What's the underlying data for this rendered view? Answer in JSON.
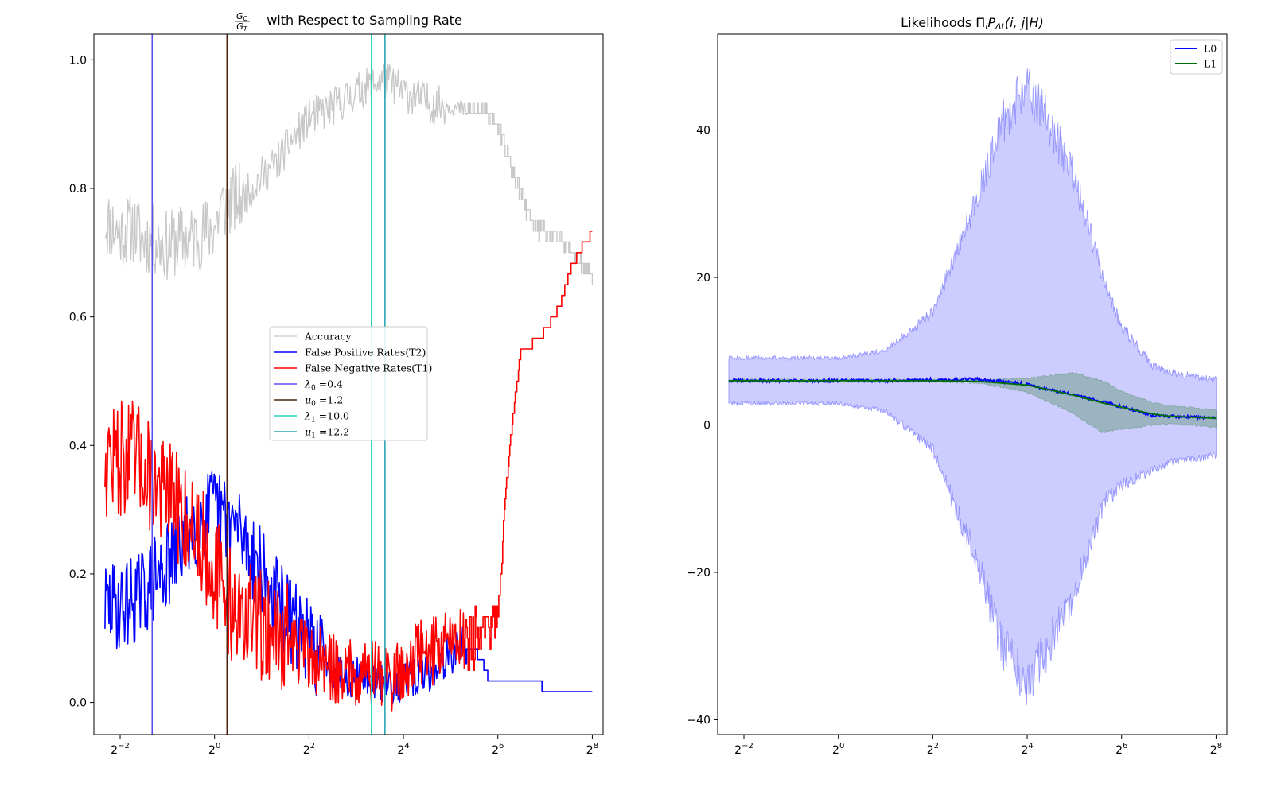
{
  "figure": {
    "background": "#ffffff"
  },
  "chart_data": [
    {
      "type": "line",
      "title": "G_C/G_T with Respect to Sampling Rate",
      "title_parts": {
        "num": "G",
        "num_sub": "C",
        "den": "G",
        "den_sub": "T",
        "rest": "with Respect to Sampling Rate"
      },
      "xlabel": "",
      "ylabel": "",
      "xscale": "log2",
      "xlim": [
        0.17,
        300
      ],
      "ylim": [
        -0.05,
        1.04
      ],
      "xticks": [
        {
          "exp": "−2",
          "value": 0.25
        },
        {
          "exp": "0",
          "value": 1
        },
        {
          "exp": "2",
          "value": 4
        },
        {
          "exp": "4",
          "value": 16
        },
        {
          "exp": "6",
          "value": 64
        },
        {
          "exp": "8",
          "value": 256
        }
      ],
      "yticks": [
        {
          "label": "0.0",
          "value": 0.0
        },
        {
          "label": "0.2",
          "value": 0.2
        },
        {
          "label": "0.4",
          "value": 0.4
        },
        {
          "label": "0.6",
          "value": 0.6
        },
        {
          "label": "0.8",
          "value": 0.8
        },
        {
          "label": "1.0",
          "value": 1.0
        }
      ],
      "grid": false,
      "legend_position": "center",
      "noisy_series": [
        {
          "name": "Accuracy",
          "color": "#c8c8c8",
          "stroke": 1.3,
          "points": [
            [
              0.2,
              0.75
            ],
            [
              0.25,
              0.73
            ],
            [
              0.3,
              0.74
            ],
            [
              0.35,
              0.72
            ],
            [
              0.4,
              0.72
            ],
            [
              0.5,
              0.71
            ],
            [
              0.6,
              0.72
            ],
            [
              0.7,
              0.72
            ],
            [
              0.85,
              0.73
            ],
            [
              1.0,
              0.74
            ],
            [
              1.1,
              0.77
            ],
            [
              1.3,
              0.78
            ],
            [
              1.6,
              0.79
            ],
            [
              2.0,
              0.82
            ],
            [
              2.5,
              0.84
            ],
            [
              3.0,
              0.87
            ],
            [
              3.5,
              0.89
            ],
            [
              4.0,
              0.91
            ],
            [
              5.0,
              0.92
            ],
            [
              6.0,
              0.93
            ],
            [
              7.0,
              0.94
            ],
            [
              8.0,
              0.95
            ],
            [
              10.0,
              0.96
            ],
            [
              12.0,
              0.97
            ],
            [
              14.0,
              0.96
            ],
            [
              16.0,
              0.95
            ],
            [
              20.0,
              0.94
            ],
            [
              25.0,
              0.93
            ],
            [
              30.0,
              0.93
            ],
            [
              40.0,
              0.92
            ],
            [
              50.0,
              0.92
            ],
            [
              60.0,
              0.91
            ],
            [
              70.0,
              0.87
            ],
            [
              80.0,
              0.82
            ],
            [
              90.0,
              0.79
            ],
            [
              100.0,
              0.76
            ],
            [
              110.0,
              0.74
            ],
            [
              130.0,
              0.73
            ],
            [
              160.0,
              0.72
            ],
            [
              190.0,
              0.7
            ],
            [
              220.0,
              0.68
            ],
            [
              256.0,
              0.66
            ]
          ]
        },
        {
          "name": "False Positive Rates(T2)",
          "color": "#0000ff",
          "stroke": 1.6,
          "points": [
            [
              0.2,
              0.15
            ],
            [
              0.25,
              0.15
            ],
            [
              0.3,
              0.16
            ],
            [
              0.35,
              0.17
            ],
            [
              0.4,
              0.19
            ],
            [
              0.5,
              0.21
            ],
            [
              0.6,
              0.24
            ],
            [
              0.7,
              0.27
            ],
            [
              0.85,
              0.29
            ],
            [
              1.0,
              0.3
            ],
            [
              1.1,
              0.29
            ],
            [
              1.3,
              0.28
            ],
            [
              1.6,
              0.25
            ],
            [
              2.0,
              0.2
            ],
            [
              2.5,
              0.16
            ],
            [
              3.0,
              0.13
            ],
            [
              3.5,
              0.11
            ],
            [
              4.0,
              0.09
            ],
            [
              5.0,
              0.07
            ],
            [
              6.0,
              0.05
            ],
            [
              7.0,
              0.04
            ],
            [
              8.0,
              0.04
            ],
            [
              10.0,
              0.04
            ],
            [
              12.0,
              0.03
            ],
            [
              14.0,
              0.03
            ],
            [
              16.0,
              0.03
            ],
            [
              20.0,
              0.04
            ],
            [
              25.0,
              0.05
            ],
            [
              30.0,
              0.07
            ],
            [
              40.0,
              0.09
            ],
            [
              50.0,
              0.07
            ],
            [
              55.0,
              0.04
            ],
            [
              70.0,
              0.035
            ],
            [
              90.0,
              0.035
            ],
            [
              110.0,
              0.035
            ],
            [
              130.0,
              0.018
            ],
            [
              180.0,
              0.018
            ],
            [
              256.0,
              0.018
            ]
          ]
        },
        {
          "name": "False Negative Rates(T1)",
          "color": "#ff0000",
          "stroke": 1.6,
          "points": [
            [
              0.2,
              0.38
            ],
            [
              0.25,
              0.38
            ],
            [
              0.3,
              0.38
            ],
            [
              0.35,
              0.37
            ],
            [
              0.4,
              0.35
            ],
            [
              0.5,
              0.32
            ],
            [
              0.6,
              0.3
            ],
            [
              0.7,
              0.28
            ],
            [
              0.85,
              0.25
            ],
            [
              1.0,
              0.21
            ],
            [
              1.1,
              0.18
            ],
            [
              1.3,
              0.15
            ],
            [
              1.6,
              0.13
            ],
            [
              2.0,
              0.12
            ],
            [
              2.5,
              0.11
            ],
            [
              3.0,
              0.1
            ],
            [
              3.5,
              0.08
            ],
            [
              4.0,
              0.07
            ],
            [
              5.0,
              0.06
            ],
            [
              6.0,
              0.05
            ],
            [
              7.0,
              0.05
            ],
            [
              8.0,
              0.05
            ],
            [
              10.0,
              0.05
            ],
            [
              12.0,
              0.04
            ],
            [
              14.0,
              0.04
            ],
            [
              16.0,
              0.05
            ],
            [
              20.0,
              0.08
            ],
            [
              25.0,
              0.08
            ],
            [
              30.0,
              0.1
            ],
            [
              40.0,
              0.1
            ],
            [
              50.0,
              0.11
            ],
            [
              60.0,
              0.12
            ],
            [
              65.0,
              0.16
            ],
            [
              70.0,
              0.3
            ],
            [
              80.0,
              0.45
            ],
            [
              90.0,
              0.55
            ],
            [
              110.0,
              0.56
            ],
            [
              130.0,
              0.58
            ],
            [
              160.0,
              0.62
            ],
            [
              190.0,
              0.68
            ],
            [
              220.0,
              0.71
            ],
            [
              256.0,
              0.73
            ]
          ]
        }
      ],
      "vlines": [
        {
          "name": "λ₀ =0.4",
          "sym": "λ",
          "sub": "0",
          "value": "0.4",
          "x": 0.4,
          "color": "#5a4ff0"
        },
        {
          "name": "μ₀ =1.2",
          "sym": "μ",
          "sub": "0",
          "value": "1.2",
          "x": 1.2,
          "color": "#4a2210"
        },
        {
          "name": "λ₁ =10.0",
          "sym": "λ",
          "sub": "1",
          "value": "10.0",
          "x": 10.0,
          "color": "#22d6bc"
        },
        {
          "name": "μ₁ =12.2",
          "sym": "μ",
          "sub": "1",
          "value": "12.2",
          "x": 12.2,
          "color": "#2aa6b4"
        }
      ]
    },
    {
      "type": "area",
      "title": "Likelihoods ΠᵢPΔt(i, j|H)",
      "title_parts": {
        "pre": "Likelihoods Π",
        "pi_sub": "i",
        "p": "P",
        "p_sub": "Δt",
        "args": "(i, j|H)"
      },
      "xlabel": "",
      "ylabel": "",
      "xscale": "log2",
      "xlim": [
        0.17,
        300
      ],
      "ylim": [
        -42,
        53
      ],
      "xticks": [
        {
          "exp": "−2",
          "value": 0.25
        },
        {
          "exp": "0",
          "value": 1
        },
        {
          "exp": "2",
          "value": 4
        },
        {
          "exp": "4",
          "value": 16
        },
        {
          "exp": "6",
          "value": 64
        },
        {
          "exp": "8",
          "value": 256
        }
      ],
      "yticks": [
        {
          "label": "−40",
          "value": -40
        },
        {
          "label": "−20",
          "value": -20
        },
        {
          "label": "0",
          "value": 0
        },
        {
          "label": "20",
          "value": 20
        },
        {
          "label": "40",
          "value": 40
        }
      ],
      "grid": false,
      "legend_position": "top-right",
      "bands": [
        {
          "name": "L0 band",
          "color": "#0000ff",
          "fill_opacity": 0.2,
          "x": [
            0.2,
            0.5,
            1.0,
            2.0,
            4.0,
            8.0,
            11.0,
            16.0,
            22.0,
            32.0,
            50.0,
            64.0,
            100.0,
            128.0,
            256.0
          ],
          "upper": [
            9,
            9,
            9,
            10,
            15,
            31,
            40,
            45,
            40,
            33,
            19,
            13,
            8,
            7,
            6
          ],
          "lower": [
            3,
            3,
            3,
            2,
            -3,
            -19,
            -29,
            -34,
            -29,
            -22,
            -10,
            -8,
            -6,
            -5,
            -4
          ]
        },
        {
          "name": "L1 band",
          "color": "#2e7d32",
          "fill_opacity": 0.3,
          "x": [
            0.2,
            1.0,
            4.0,
            8.0,
            16.0,
            32.0,
            48.0,
            64.0,
            100.0,
            128.0,
            256.0
          ],
          "upper": [
            6.1,
            6.1,
            6.1,
            6.1,
            6.3,
            7.0,
            6.0,
            4.5,
            3.0,
            2.6,
            2.0
          ],
          "lower": [
            5.9,
            5.9,
            5.9,
            5.7,
            4.5,
            1.5,
            -1.0,
            -0.5,
            0.0,
            0.2,
            -0.3
          ]
        }
      ],
      "series": [
        {
          "name": "L0",
          "color": "#0000ff",
          "stroke": 1.8,
          "noise": 0.22,
          "x": [
            0.2,
            0.5,
            1.0,
            2.0,
            4.0,
            8.0,
            16.0,
            32.0,
            64.0,
            100.0,
            128.0,
            256.0
          ],
          "y": [
            6.0,
            6.0,
            6.0,
            6.0,
            6.1,
            6.2,
            5.5,
            4.0,
            2.5,
            1.3,
            1.2,
            0.9
          ]
        },
        {
          "name": "L1",
          "color": "#007000",
          "stroke": 1.8,
          "noise": 0.0,
          "x": [
            0.2,
            1.0,
            4.0,
            8.0,
            16.0,
            24.0,
            32.0,
            48.0,
            64.0,
            100.0,
            128.0,
            256.0
          ],
          "y": [
            6.0,
            6.0,
            6.0,
            5.9,
            5.4,
            4.6,
            4.0,
            3.0,
            2.4,
            1.5,
            1.2,
            0.9
          ]
        }
      ]
    }
  ]
}
